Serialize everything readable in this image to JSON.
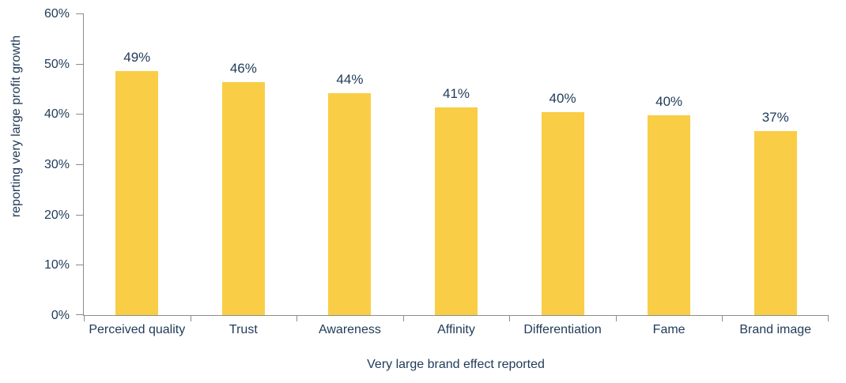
{
  "chart_data": {
    "type": "bar",
    "categories": [
      "Perceived quality",
      "Trust",
      "Awareness",
      "Affinity",
      "Differentiation",
      "Fame",
      "Brand image"
    ],
    "values": [
      48.6,
      46.3,
      44.2,
      41.3,
      40.3,
      39.7,
      36.6
    ],
    "value_labels": [
      "49%",
      "46%",
      "44%",
      "41%",
      "40%",
      "40%",
      "37%"
    ],
    "xlabel": "Very large brand effect reported",
    "ylabel": "reporting very large profit growth",
    "ylim": [
      0,
      60
    ],
    "yticks": [
      0,
      10,
      20,
      30,
      40,
      50,
      60
    ],
    "ytick_labels": [
      "0%",
      "10%",
      "20%",
      "30%",
      "40%",
      "50%",
      "60%"
    ],
    "grid": false,
    "legend": false,
    "colors": {
      "bar": "#F9CD45",
      "text": "#1F3A58",
      "axis": "#8C8C8C",
      "background": "#FFFFFF"
    }
  }
}
